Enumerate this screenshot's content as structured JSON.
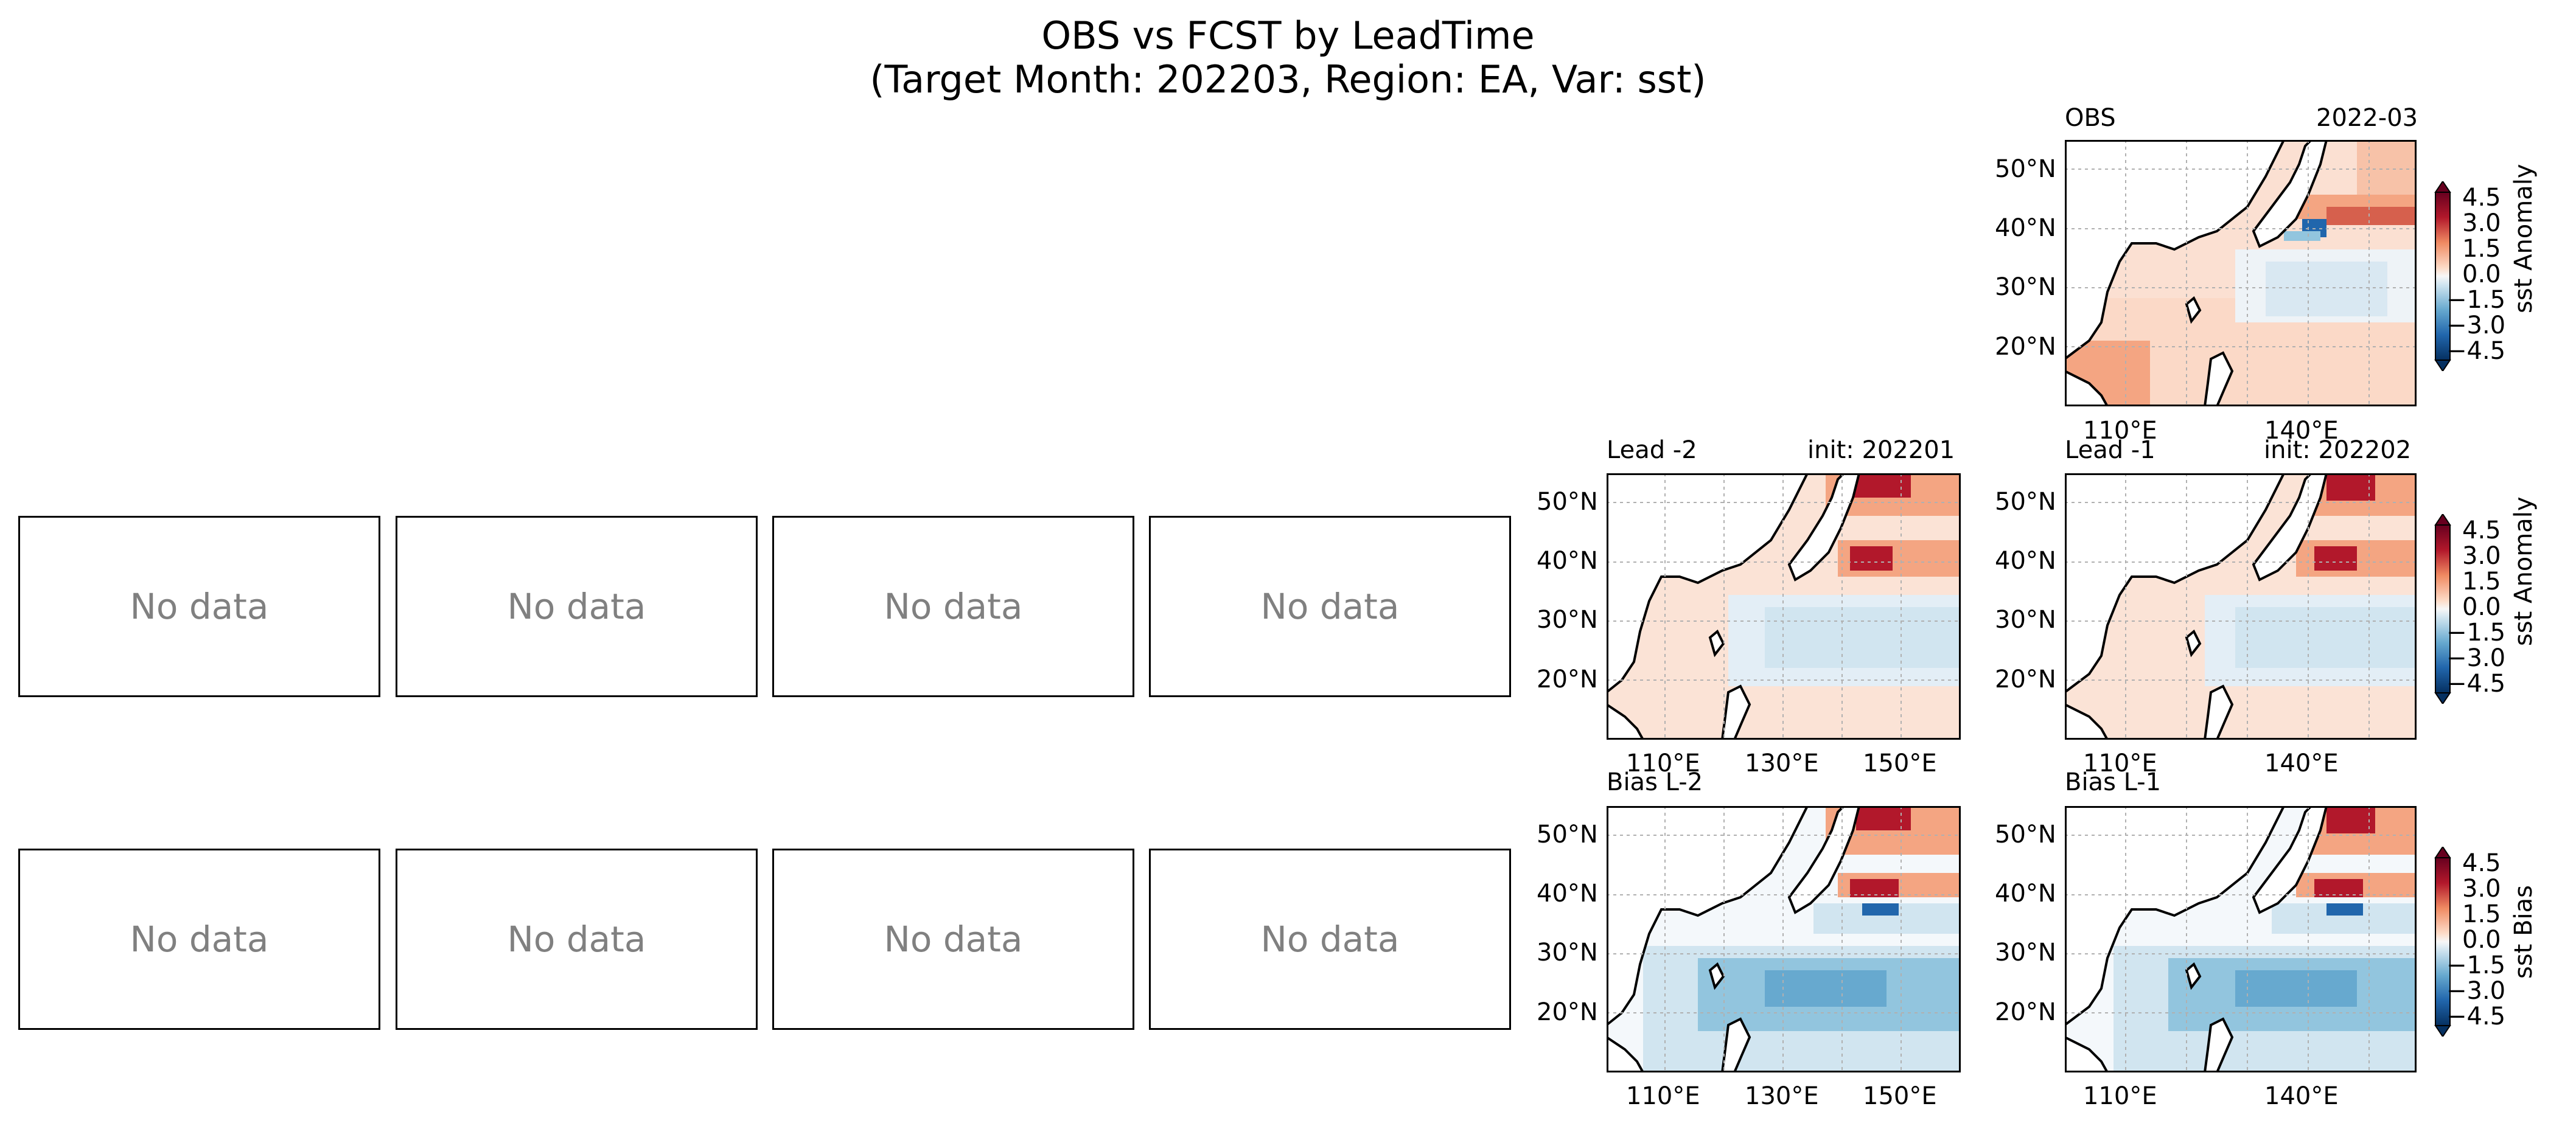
{
  "figure": {
    "title_line1": "OBS vs FCST by LeadTime",
    "title_line2": "(Target Month: 202203, Region: EA, Var: sst)"
  },
  "empty_panels": {
    "text": "No data",
    "rows": 2,
    "cols": 4
  },
  "panels": {
    "obs": {
      "left_title": "OBS",
      "right_title": "2022-03"
    },
    "lead_m2": {
      "left_title": "Lead -2",
      "right_title": "init: 202201"
    },
    "lead_m1": {
      "left_title": "Lead -1",
      "right_title": "init: 202202"
    },
    "bias_m2": {
      "left_title": "Bias L-2"
    },
    "bias_m1": {
      "left_title": "Bias L-1"
    }
  },
  "lat_ticks": [
    "50°N",
    "40°N",
    "30°N",
    "20°N"
  ],
  "lon_ticks_wide": [
    "110°E",
    "130°E",
    "150°E"
  ],
  "lon_ticks_narrow": [
    "110°E",
    "140°E"
  ],
  "colorbars": {
    "ticks": [
      "4.5",
      "3.0",
      "1.5",
      "0.0",
      "−1.5",
      "−3.0",
      "−4.5"
    ],
    "obs_label": "sst Anomaly",
    "fcst_label": "sst Anomaly",
    "bias_label": "sst Bias"
  },
  "colors": {
    "warm_strong": "#b2182b",
    "warm": "#ef8a62",
    "warm_light": "#fddbc7",
    "neutral": "#f7f7f7",
    "cool_light": "#d1e5f0",
    "cool": "#67a9cf",
    "cool_strong": "#2166ac",
    "gridline": "#b0b0b0"
  }
}
